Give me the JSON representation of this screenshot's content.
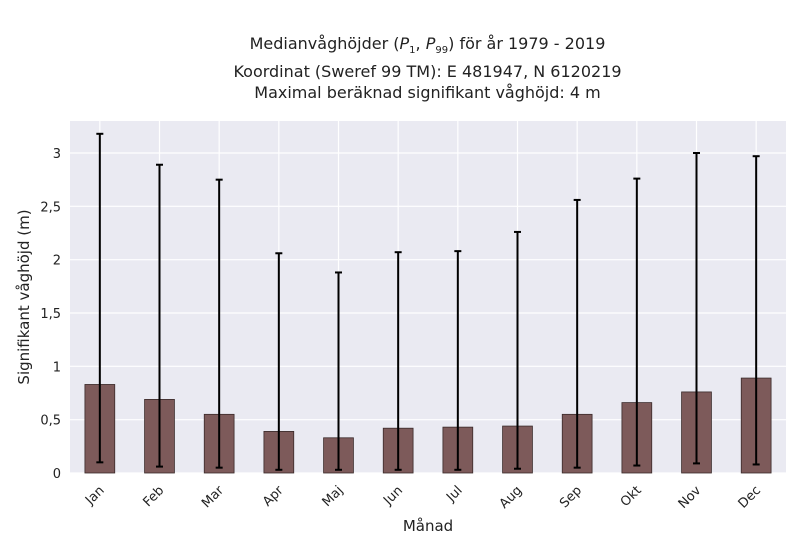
{
  "title": {
    "line1_prefix": "Medianvåghöjder (",
    "p1_main": "P",
    "p1_sub": "1",
    "separator": ", ",
    "p99_main": "P",
    "p99_sub": "99",
    "line1_suffix": ") för år 1979 - 2019",
    "line2": "Koordinat (Sweref 99 TM): E 481947, N 6120219",
    "line3": "Maximal beräknad signifikant våghöjd: 4 m"
  },
  "chart_data": {
    "type": "bar",
    "xlabel": "Månad",
    "ylabel": "Signifikant våghöjd (m)",
    "categories": [
      "Jan",
      "Feb",
      "Mar",
      "Apr",
      "Maj",
      "Jun",
      "Jul",
      "Aug",
      "Sep",
      "Okt",
      "Nov",
      "Dec"
    ],
    "values": [
      0.83,
      0.69,
      0.55,
      0.39,
      0.33,
      0.42,
      0.43,
      0.44,
      0.55,
      0.66,
      0.76,
      0.89
    ],
    "error_low": [
      0.1,
      0.06,
      0.05,
      0.03,
      0.03,
      0.03,
      0.03,
      0.04,
      0.05,
      0.07,
      0.09,
      0.08
    ],
    "error_high": [
      3.18,
      2.89,
      2.75,
      2.06,
      1.88,
      2.07,
      2.08,
      2.26,
      2.56,
      2.76,
      3.0,
      2.97
    ],
    "ylim": [
      0,
      3.3
    ],
    "yticks": [
      0,
      0.5,
      1,
      1.5,
      2,
      2.5,
      3
    ],
    "ytick_labels": [
      "0",
      "0,5",
      "1",
      "1,5",
      "2",
      "2,5",
      "3"
    ],
    "grid": true,
    "legend": "none",
    "colors": {
      "bar": "#7d5a5a",
      "bar_edge": "#3a2a2a",
      "error_bar": "#000000",
      "plot_background": "#eaeaf2",
      "grid": "#ffffff"
    }
  }
}
